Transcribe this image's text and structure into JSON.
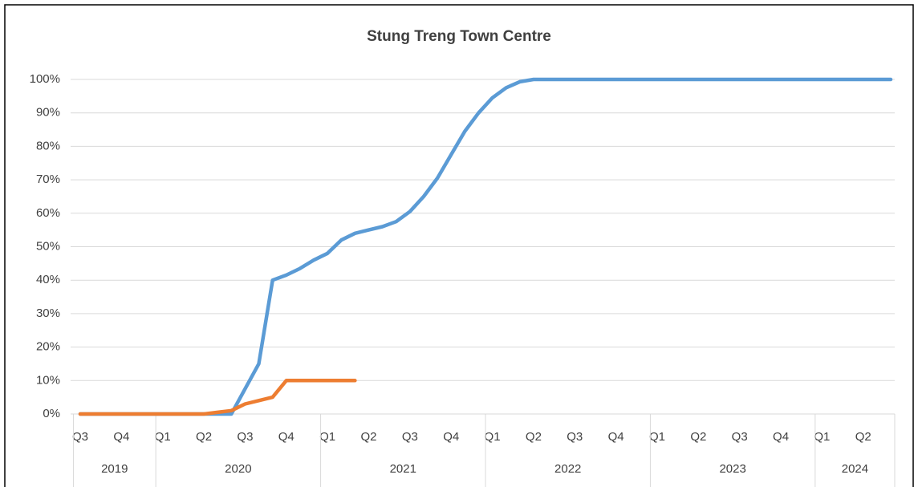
{
  "chart_data": {
    "type": "line",
    "title": "Stung Treng  Town Centre",
    "categories": [
      "Q3",
      null,
      null,
      "Q4",
      null,
      null,
      "Q1",
      null,
      null,
      "Q2",
      null,
      null,
      "Q3",
      null,
      null,
      "Q4",
      null,
      null,
      "Q1",
      null,
      null,
      "Q2",
      null,
      null,
      "Q3",
      null,
      null,
      "Q4",
      null,
      null,
      "Q1",
      null,
      null,
      "Q2",
      null,
      null,
      "Q3",
      null,
      null,
      "Q4",
      null,
      null,
      "Q1",
      null,
      null,
      "Q2",
      null,
      null,
      "Q3",
      null,
      null,
      "Q4",
      null,
      null,
      "Q1",
      null,
      null,
      "Q2",
      null,
      null
    ],
    "year_labels": [
      "2019",
      "2020",
      "2021",
      "2022",
      "2023",
      "2024"
    ],
    "series": [
      {
        "color": "#5b9bd5",
        "values": [
          0,
          0,
          0,
          0,
          0,
          0,
          0,
          0,
          0,
          0,
          0,
          0,
          7.5,
          15,
          40,
          41.5,
          43.5,
          46,
          48,
          52,
          54,
          55,
          56,
          57.5,
          60.5,
          65,
          70.5,
          77.5,
          84.5,
          90,
          94.5,
          97.5,
          99.3,
          100,
          100,
          100,
          100,
          100,
          100,
          100,
          100,
          100,
          100,
          100,
          100,
          100,
          100,
          100,
          100,
          100,
          100,
          100,
          100,
          100,
          100,
          100,
          100,
          100,
          100,
          100
        ]
      },
      {
        "color": "#ed7d31",
        "values": [
          0,
          0,
          0,
          0,
          0,
          0,
          0,
          0,
          0,
          0,
          0.5,
          1,
          3,
          4,
          5,
          10,
          10,
          10,
          10,
          10,
          10,
          null,
          null,
          null,
          null,
          null,
          null,
          null,
          null,
          null,
          null,
          null,
          null,
          null,
          null,
          null,
          null,
          null,
          null,
          null,
          null,
          null,
          null,
          null,
          null,
          null,
          null,
          null,
          null,
          null,
          null,
          null,
          null,
          null,
          null,
          null,
          null,
          null,
          null,
          null
        ]
      }
    ],
    "ylim": [
      0,
      100
    ],
    "yticks": [
      {
        "value": 0,
        "label": "0%"
      },
      {
        "value": 10,
        "label": "10%"
      },
      {
        "value": 20,
        "label": "20%"
      },
      {
        "value": 30,
        "label": "30%"
      },
      {
        "value": 40,
        "label": "40%"
      },
      {
        "value": 50,
        "label": "50%"
      },
      {
        "value": 60,
        "label": "60%"
      },
      {
        "value": 70,
        "label": "70%"
      },
      {
        "value": 80,
        "label": "80%"
      },
      {
        "value": 90,
        "label": "90%"
      },
      {
        "value": 100,
        "label": "100%"
      }
    ],
    "grid": true
  }
}
